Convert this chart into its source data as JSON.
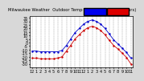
{
  "title": "Milwaukee Weather  Outdoor Temp vs Wind Chill  (24 Hours)",
  "bg_color": "#d8d8d8",
  "plot_bg_color": "#ffffff",
  "grid_color": "#888888",
  "temp_color": "#0000cc",
  "windchill_color": "#cc0000",
  "x_hours": [
    0,
    1,
    2,
    3,
    4,
    5,
    6,
    7,
    8,
    9,
    10,
    11,
    12,
    13,
    14,
    15,
    16,
    17,
    18,
    19,
    20,
    21,
    22,
    23
  ],
  "temp_values": [
    -12,
    -12,
    -13,
    -13,
    -13,
    -13,
    -13,
    -11,
    -4,
    5,
    14,
    20,
    26,
    30,
    32,
    30,
    26,
    20,
    12,
    4,
    -2,
    -8,
    -14,
    -22
  ],
  "windchill_values": [
    -22,
    -22,
    -23,
    -23,
    -23,
    -23,
    -22,
    -20,
    -12,
    -4,
    5,
    11,
    17,
    21,
    23,
    21,
    17,
    11,
    3,
    -4,
    -9,
    -15,
    -21,
    -30
  ],
  "ylim": [
    -35,
    38
  ],
  "xlim": [
    -0.5,
    23.5
  ],
  "xlabel_ticks": [
    0,
    1,
    2,
    3,
    4,
    5,
    6,
    7,
    8,
    9,
    10,
    11,
    12,
    13,
    14,
    15,
    16,
    17,
    18,
    19,
    20,
    21,
    22,
    23
  ],
  "xlabel_labels": [
    "12",
    "1",
    "2",
    "3",
    "4",
    "5",
    "6",
    "7",
    "8",
    "9",
    "10",
    "11",
    "12",
    "1",
    "2",
    "3",
    "4",
    "5",
    "6",
    "7",
    "8",
    "9",
    "10",
    "11"
  ],
  "ytick_values": [
    -30,
    -25,
    -20,
    -15,
    -10,
    -5,
    0,
    5,
    10,
    15,
    20,
    25,
    30,
    35
  ],
  "legend_bar_blue": "#0000ee",
  "legend_bar_red": "#dd0000",
  "tick_fontsize": 3.5,
  "marker_size": 1.5,
  "line_width": 0.6
}
